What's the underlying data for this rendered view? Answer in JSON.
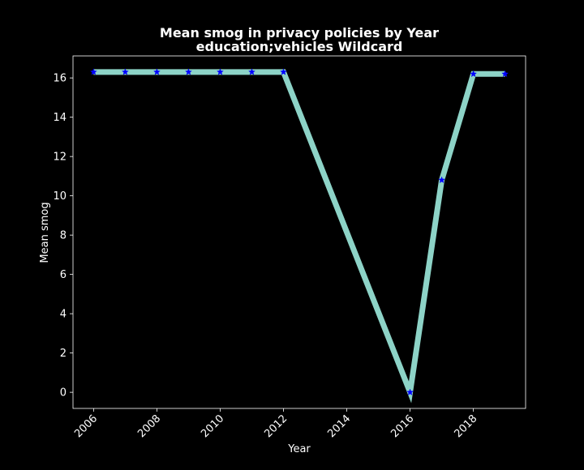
{
  "chart_data": {
    "type": "line",
    "title_lines": [
      "Mean smog in privacy policies by Year",
      "education;vehicles Wildcard"
    ],
    "xlabel": "Year",
    "ylabel": "Mean smog",
    "x": [
      2006,
      2007,
      2008,
      2009,
      2010,
      2011,
      2012,
      2016,
      2017,
      2018,
      2019
    ],
    "series": [
      {
        "values": [
          16.3,
          16.3,
          16.3,
          16.3,
          16.3,
          16.3,
          16.3,
          0.0,
          10.8,
          16.2,
          16.2
        ]
      }
    ],
    "xlim": [
      2005.35,
      2019.65
    ],
    "ylim": [
      -0.82,
      17.12
    ],
    "x_ticks": [
      2006,
      2008,
      2010,
      2012,
      2014,
      2016,
      2018
    ],
    "x_tick_labels": [
      "2006",
      "2008",
      "2010",
      "2012",
      "2014",
      "2016",
      "2018"
    ],
    "y_ticks": [
      0,
      2,
      4,
      6,
      8,
      10,
      12,
      14,
      16
    ],
    "y_tick_labels": [
      "0",
      "2",
      "4",
      "6",
      "8",
      "10",
      "12",
      "14",
      "16"
    ],
    "grid": false,
    "legend": "none",
    "colors": {
      "background": "#000000",
      "text": "#ffffff",
      "axes": "#ffffff",
      "line": "#8dd3c7",
      "marker": "#0000ff"
    },
    "marker_symbol": "star"
  }
}
